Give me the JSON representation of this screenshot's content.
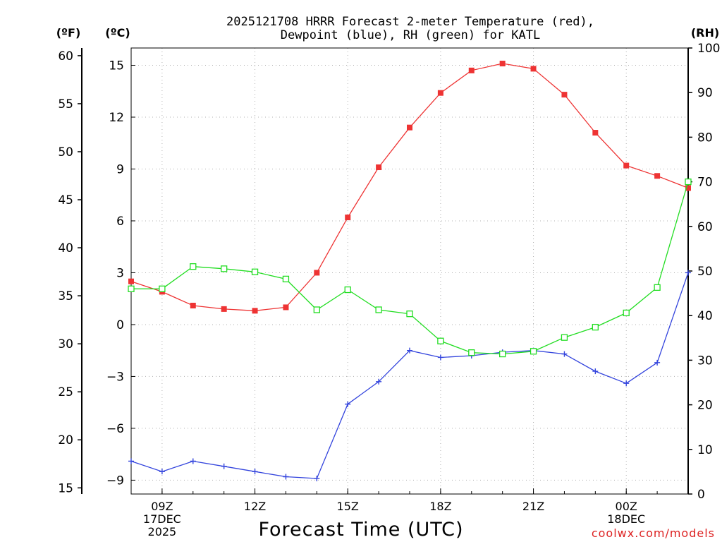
{
  "chart_data": {
    "type": "line",
    "title_line1": "2025121708 HRRR Forecast 2-meter Temperature (red),",
    "title_line2": "Dewpoint (blue), RH (green) for KATL",
    "xlabel": "Forecast Time (UTC)",
    "unit_f": "(ºF)",
    "unit_c": "(ºC)",
    "unit_rh": "(RH)",
    "credit": "coolwx.com/models",
    "x_hours": [
      8,
      9,
      10,
      11,
      12,
      13,
      14,
      15,
      16,
      17,
      18,
      19,
      20,
      21,
      22,
      23,
      24,
      25,
      26
    ],
    "x_tick_labels": [
      {
        "hour": 9,
        "lines": [
          "09Z",
          "17DEC",
          "2025"
        ]
      },
      {
        "hour": 12,
        "lines": [
          "12Z"
        ]
      },
      {
        "hour": 15,
        "lines": [
          "15Z"
        ]
      },
      {
        "hour": 18,
        "lines": [
          "18Z"
        ]
      },
      {
        "hour": 21,
        "lines": [
          "21Z"
        ]
      },
      {
        "hour": 24,
        "lines": [
          "00Z",
          "18DEC"
        ]
      }
    ],
    "celsius_axis": {
      "range": [
        -9.8,
        16.0
      ],
      "ticks": [
        -9,
        -6,
        -3,
        0,
        3,
        6,
        9,
        12,
        15
      ]
    },
    "fahrenheit_axis": {
      "ticks": [
        15,
        20,
        25,
        30,
        35,
        40,
        45,
        50,
        55,
        60
      ]
    },
    "rh_axis": {
      "range": [
        0,
        100
      ],
      "ticks": [
        0,
        10,
        20,
        30,
        40,
        50,
        60,
        70,
        80,
        90,
        100
      ]
    },
    "series": [
      {
        "name": "2-meter Temperature",
        "unit": "C",
        "axis": "left",
        "color": "#ee3333",
        "marker": "filled-square",
        "values": [
          2.5,
          1.9,
          1.1,
          0.9,
          0.8,
          1.0,
          3.0,
          6.2,
          9.1,
          11.4,
          13.4,
          14.7,
          15.1,
          14.8,
          13.3,
          11.1,
          9.2,
          8.6,
          7.9
        ]
      },
      {
        "name": "Dewpoint",
        "unit": "C",
        "axis": "left",
        "color": "#3344dd",
        "marker": "plus",
        "values": [
          -7.9,
          -8.5,
          -7.9,
          -8.2,
          -8.5,
          -8.8,
          -8.9,
          -4.6,
          -3.3,
          -1.5,
          -1.9,
          -1.8,
          -1.6,
          -1.5,
          -1.7,
          -2.7,
          -3.4,
          -2.2,
          3.0
        ]
      },
      {
        "name": "RH",
        "unit": "%",
        "axis": "right",
        "color": "#22dd22",
        "marker": "open-square",
        "values": [
          46.0,
          46.0,
          51.0,
          50.5,
          49.8,
          48.2,
          41.3,
          45.8,
          41.3,
          40.4,
          34.3,
          31.7,
          31.4,
          32.0,
          35.1,
          37.4,
          40.6,
          46.3,
          70.0
        ]
      }
    ]
  }
}
